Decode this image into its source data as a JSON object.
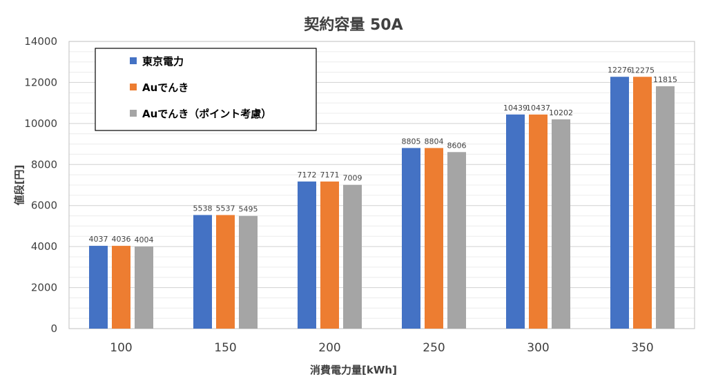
{
  "chart_data": {
    "type": "bar",
    "title": "契約容量 50A",
    "xlabel": "消費電力量[kWh]",
    "ylabel": "値段[円]",
    "categories": [
      "100",
      "150",
      "200",
      "250",
      "300",
      "350"
    ],
    "ylim": [
      0,
      14000
    ],
    "yticks": [
      "0",
      "2000",
      "4000",
      "6000",
      "8000",
      "10000",
      "12000",
      "14000"
    ],
    "grid": true,
    "legend_position": "top-left",
    "series": [
      {
        "name": "東京電力",
        "color": "#4472C4",
        "values": [
          4037,
          5538,
          7172,
          8805,
          10439,
          12276
        ]
      },
      {
        "name": "Auでんき",
        "color": "#ED7D31",
        "values": [
          4036,
          5537,
          7171,
          8804,
          10437,
          12275
        ]
      },
      {
        "name": "Auでんき（ポイント考慮）",
        "color": "#A5A5A5",
        "values": [
          4004,
          5495,
          7009,
          8606,
          10202,
          11815
        ]
      }
    ]
  }
}
